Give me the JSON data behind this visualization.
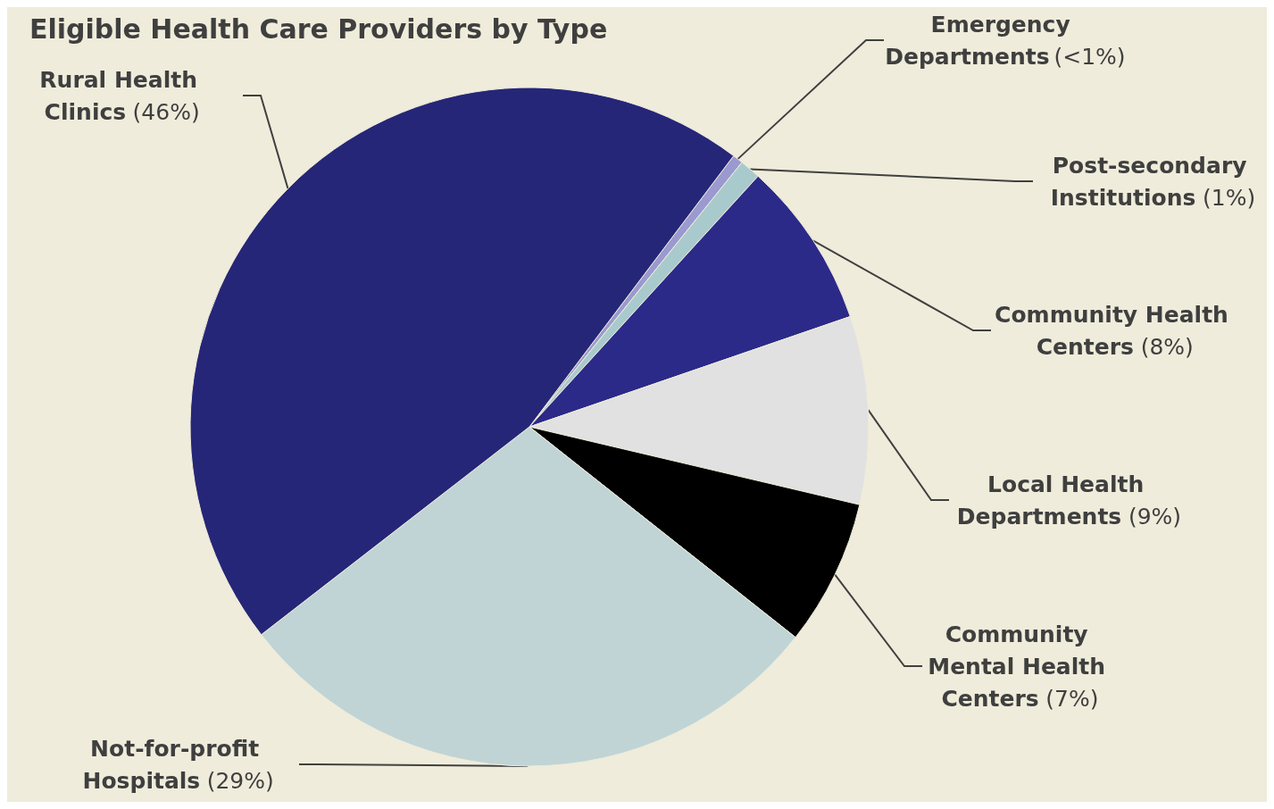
{
  "chart_data": {
    "type": "pie",
    "title": "Eligible Health Care Providers by Type",
    "categories": [
      "Emergency Departments",
      "Post-secondary Institutions",
      "Community Health Centers",
      "Local Health Departments",
      "Community Mental Health Centers",
      "Not-for-profit Hospitals",
      "Rural Health Clinics"
    ],
    "values": [
      0.5,
      1,
      8,
      9,
      7,
      29,
      46
    ],
    "colors": [
      "#9a9ad0",
      "#a9cacd",
      "#2b2a88",
      "#e1e1e1",
      "#000000",
      "#c0d4d6",
      "#262678"
    ],
    "value_labels": [
      "(<1%)",
      "(1%)",
      "(8%)",
      "(9%)",
      "(7%)",
      "(29%)",
      "(46%)"
    ]
  }
}
